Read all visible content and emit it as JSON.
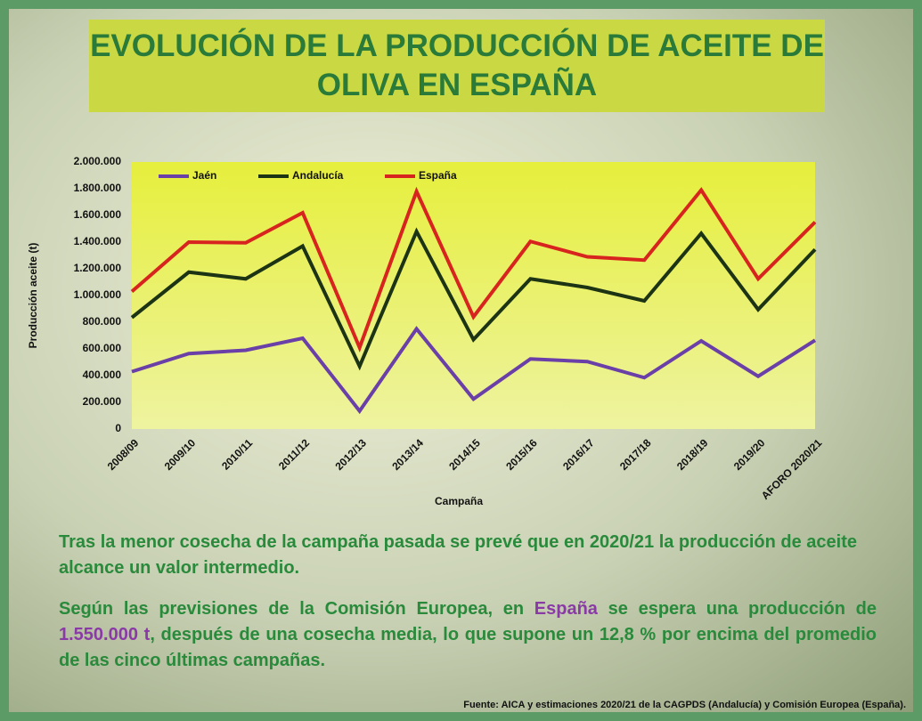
{
  "chart_data": {
    "type": "line",
    "title": "EVOLUCIÓN DE LA PRODUCCIÓN DE ACEITE DE OLIVA EN ESPAÑA",
    "x_label": "Campaña",
    "y_label": "Producción aceite (t)",
    "categories": [
      "2008/09",
      "2009/10",
      "2010/11",
      "2011/12",
      "2012/13",
      "2013/14",
      "2014/15",
      "2015/16",
      "2016/17",
      "2017/18",
      "2018/19",
      "2019/20",
      "AFORO 2020/21"
    ],
    "series": [
      {
        "name": "Jaén",
        "color": "#6a3fa8",
        "values": [
          430000,
          565000,
          590000,
          680000,
          135000,
          750000,
          225000,
          525000,
          505000,
          385000,
          660000,
          395000,
          665000
        ]
      },
      {
        "name": "Andalucía",
        "color": "#1c3314",
        "values": [
          835000,
          1175000,
          1125000,
          1370000,
          470000,
          1480000,
          670000,
          1125000,
          1060000,
          960000,
          1465000,
          895000,
          1345000
        ]
      },
      {
        "name": "España",
        "color": "#d8241e",
        "values": [
          1030000,
          1400000,
          1395000,
          1620000,
          610000,
          1780000,
          840000,
          1405000,
          1290000,
          1265000,
          1790000,
          1125000,
          1550000
        ]
      }
    ],
    "ylim": [
      0,
      2000000
    ],
    "yticks": [
      0,
      {
        "value": 200000,
        "label": "200.000"
      },
      {
        "value": 400000,
        "label": "400.000"
      },
      {
        "value": 600000,
        "label": "600.000"
      },
      {
        "value": 800000,
        "label": "800.000"
      },
      {
        "value": 1000000,
        "label": "1.000.000"
      },
      {
        "value": 1200000,
        "label": "1.200.000"
      },
      {
        "value": 1400000,
        "label": "1.400.000"
      },
      {
        "value": 1600000,
        "label": "1.600.000"
      },
      {
        "value": 1800000,
        "label": "1.800.000"
      },
      {
        "value": 2000000,
        "label": "2.000.000"
      }
    ],
    "grid": false,
    "legend": "top"
  },
  "notes": {
    "p1": "Tras la menor cosecha de la campaña pasada se prevé que en 2020/21 la producción de aceite alcance un valor intermedio.",
    "p2_a": "Según las previsiones de la Comisión Europea, en ",
    "p2_b": "España",
    "p2_c": " se espera una producción de ",
    "p2_d": "1.550.000 t",
    "p2_e": ", después de una cosecha media, lo que supone un 12,8 % por encima del promedio de las cinco últimas campañas.",
    "source": "Fuente: AICA y estimaciones 2020/21 de la CAGPDS (Andalucía) y Comisión Europea (España)."
  }
}
